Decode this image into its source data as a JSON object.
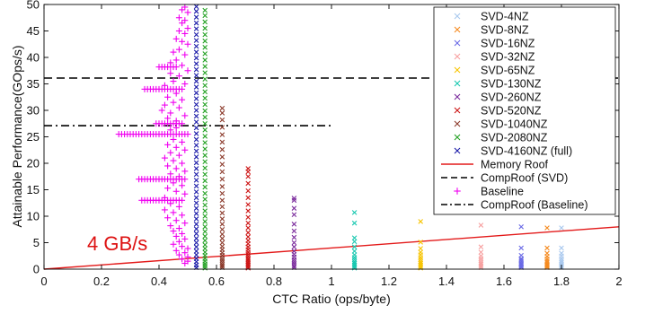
{
  "chart_data": {
    "type": "scatter",
    "title": "",
    "xlabel": "CTC Ratio (ops/byte)",
    "ylabel": "Attainable Performance(GOps/s)",
    "xlim": [
      0,
      2
    ],
    "ylim": [
      0,
      50
    ],
    "xticks": [
      "0",
      "0.2",
      "0.4",
      "0.6",
      "0.8",
      "1",
      "1.2",
      "1.4",
      "1.6",
      "1.8",
      "2"
    ],
    "yticks": [
      "0",
      "5",
      "10",
      "15",
      "20",
      "25",
      "30",
      "35",
      "40",
      "45",
      "50"
    ],
    "grid": false,
    "legend_position": "top-right",
    "annotation": {
      "text": "4 GB/s",
      "x": 0.15,
      "y": 3.6,
      "color": "#dd1111"
    },
    "series": [
      {
        "name": "SVD-4NZ",
        "marker": "x",
        "color": "#a8c8ee",
        "x": 1.8,
        "y_values": [
          0.3,
          0.5,
          0.8,
          1.0,
          1.3,
          1.6,
          2.0,
          2.5,
          3.0,
          4.0,
          7.8
        ]
      },
      {
        "name": "SVD-8NZ",
        "marker": "x",
        "color": "#f58a1f",
        "x": 1.75,
        "y_values": [
          0.3,
          0.5,
          0.7,
          0.9,
          1.2,
          1.5,
          1.9,
          2.4,
          3.0,
          4.0,
          7.8
        ]
      },
      {
        "name": "SVD-16NZ",
        "marker": "x",
        "color": "#6a6ae6",
        "x": 1.66,
        "y_values": [
          0.3,
          0.5,
          0.7,
          0.9,
          1.1,
          1.4,
          1.7,
          2.0,
          2.6,
          4.0,
          8.0
        ]
      },
      {
        "name": "SVD-32NZ",
        "marker": "x",
        "color": "#f7a0a0",
        "x": 1.52,
        "y_values": [
          0.3,
          0.6,
          0.9,
          1.2,
          1.6,
          2.0,
          2.5,
          3.2,
          4.2,
          8.3
        ]
      },
      {
        "name": "SVD-65NZ",
        "marker": "x",
        "color": "#f7c400",
        "x": 1.31,
        "y_values": [
          0.2,
          0.5,
          0.8,
          1.1,
          1.4,
          1.8,
          2.2,
          2.7,
          3.2,
          3.9,
          5.1,
          9.0
        ]
      },
      {
        "name": "SVD-130NZ",
        "marker": "x",
        "color": "#18c8b0",
        "x": 1.08,
        "y_values": [
          0.2,
          0.5,
          0.8,
          1.1,
          1.4,
          1.8,
          2.2,
          2.7,
          3.4,
          4.2,
          5.2,
          5.9,
          8.7,
          10.7
        ]
      },
      {
        "name": "SVD-260NZ",
        "marker": "x",
        "color": "#7a2a9c",
        "x": 0.87,
        "y_values": [
          0.3,
          0.6,
          1.0,
          1.4,
          1.8,
          2.3,
          2.8,
          3.4,
          4.2,
          5.0,
          6.0,
          7.2,
          8.5,
          10.3,
          11.5,
          13.0,
          13.4
        ]
      },
      {
        "name": "SVD-520NZ",
        "marker": "x",
        "color": "#cc1414",
        "x": 0.71,
        "y_values": [
          0.2,
          0.5,
          0.8,
          1.1,
          1.4,
          1.7,
          2.0,
          2.4,
          2.8,
          3.2,
          3.7,
          4.2,
          4.8,
          5.4,
          6.1,
          6.9,
          7.8,
          8.7,
          9.8,
          11.0,
          12.2,
          13.5,
          14.8,
          16.2,
          17.5,
          18.4,
          19.0
        ]
      },
      {
        "name": "SVD-1040NZ",
        "marker": "x",
        "color": "#8c3b2c",
        "x": 0.62,
        "y_values": [
          0.3,
          0.6,
          0.9,
          1.3,
          1.7,
          2.1,
          2.6,
          3.1,
          3.7,
          4.3,
          5.0,
          5.8,
          6.6,
          7.5,
          8.5,
          9.5,
          10.6,
          11.8,
          13.0,
          14.3,
          15.6,
          17.0,
          18.4,
          19.8,
          21.2,
          22.6,
          24.0,
          25.4,
          26.8,
          28.2,
          29.5,
          30.4
        ]
      },
      {
        "name": "SVD-2080NZ",
        "marker": "x",
        "color": "#23a123",
        "x": 0.56,
        "y_values": [
          0.2,
          0.6,
          1.0,
          1.5,
          2.0,
          2.6,
          3.2,
          3.9,
          4.6,
          5.4,
          6.2,
          7.1,
          8.0,
          9.0,
          10.0,
          11.0,
          12.1,
          13.2,
          14.3,
          15.5,
          16.7,
          17.9,
          19.1,
          20.3,
          21.5,
          22.7,
          23.9,
          25.1,
          26.3,
          27.5,
          28.7,
          29.9,
          31.1,
          32.3,
          33.5,
          34.7,
          35.9,
          37.1,
          38.3,
          39.5,
          40.7,
          41.9,
          43.1,
          44.3,
          45.5,
          46.7,
          47.9,
          48.9
        ]
      },
      {
        "name": "SVD-4160NZ (full)",
        "marker": "x",
        "color": "#1a1aa8",
        "x": 0.53,
        "y_values": [
          0.3,
          0.8,
          1.4,
          2.0,
          2.7,
          3.4,
          4.2,
          5.0,
          5.8,
          6.7,
          7.6,
          8.5,
          9.5,
          10.5,
          11.5,
          12.5,
          13.5,
          14.6,
          15.7,
          16.8,
          17.9,
          19.0,
          20.1,
          21.2,
          22.3,
          23.4,
          24.5,
          25.6,
          26.7,
          27.8,
          28.9,
          30.0,
          31.1,
          32.2,
          33.3,
          34.4,
          35.5,
          36.6,
          37.7,
          38.8,
          39.9,
          41.0,
          42.1,
          43.2,
          44.3,
          45.4,
          46.5,
          47.6,
          48.7,
          49.6
        ]
      },
      {
        "name": "Memory Roof",
        "type": "line",
        "color": "#e31a1a",
        "points": [
          [
            0,
            0
          ],
          [
            2,
            8
          ]
        ]
      },
      {
        "name": "CompRoof (SVD)",
        "type": "line",
        "style": "dashed",
        "color": "#000000",
        "points": [
          [
            0,
            36.1
          ],
          [
            2,
            36.1
          ]
        ]
      },
      {
        "name": "Baseline",
        "marker": "+",
        "color": "#f000f0",
        "points": [
          [
            0.49,
            49.5
          ],
          [
            0.48,
            49.0
          ],
          [
            0.5,
            48.5
          ],
          [
            0.47,
            47.5
          ],
          [
            0.49,
            47.0
          ],
          [
            0.48,
            46.5
          ],
          [
            0.5,
            45.5
          ],
          [
            0.47,
            45.0
          ],
          [
            0.49,
            44.5
          ],
          [
            0.46,
            43.5
          ],
          [
            0.48,
            43.0
          ],
          [
            0.5,
            42.5
          ],
          [
            0.47,
            41.5
          ],
          [
            0.45,
            41.0
          ],
          [
            0.49,
            40.5
          ],
          [
            0.46,
            39.5
          ],
          [
            0.44,
            39.0
          ],
          [
            0.48,
            38.5
          ],
          [
            0.4,
            38.2
          ],
          [
            0.41,
            38.2
          ],
          [
            0.42,
            38.2
          ],
          [
            0.43,
            38.2
          ],
          [
            0.44,
            38.2
          ],
          [
            0.45,
            38.2
          ],
          [
            0.46,
            38.2
          ],
          [
            0.5,
            37.5
          ],
          [
            0.44,
            37.0
          ],
          [
            0.47,
            36.5
          ],
          [
            0.45,
            35.5
          ],
          [
            0.49,
            35.0
          ],
          [
            0.42,
            34.7
          ],
          [
            0.35,
            34.0
          ],
          [
            0.36,
            34.0
          ],
          [
            0.37,
            34.0
          ],
          [
            0.38,
            34.0
          ],
          [
            0.39,
            34.0
          ],
          [
            0.4,
            34.0
          ],
          [
            0.41,
            34.0
          ],
          [
            0.42,
            34.0
          ],
          [
            0.43,
            34.0
          ],
          [
            0.44,
            34.0
          ],
          [
            0.45,
            34.0
          ],
          [
            0.46,
            34.0
          ],
          [
            0.47,
            34.0
          ],
          [
            0.48,
            34.0
          ],
          [
            0.46,
            33.2
          ],
          [
            0.43,
            32.5
          ],
          [
            0.48,
            32.0
          ],
          [
            0.45,
            31.5
          ],
          [
            0.42,
            31.0
          ],
          [
            0.47,
            30.5
          ],
          [
            0.41,
            30.0
          ],
          [
            0.44,
            29.5
          ],
          [
            0.49,
            29.0
          ],
          [
            0.43,
            28.5
          ],
          [
            0.46,
            28.0
          ],
          [
            0.39,
            27.5
          ],
          [
            0.4,
            27.5
          ],
          [
            0.41,
            27.5
          ],
          [
            0.42,
            27.5
          ],
          [
            0.43,
            27.5
          ],
          [
            0.44,
            27.5
          ],
          [
            0.45,
            27.5
          ],
          [
            0.46,
            27.5
          ],
          [
            0.47,
            27.5
          ],
          [
            0.48,
            27.5
          ],
          [
            0.46,
            26.7
          ],
          [
            0.44,
            26.3
          ],
          [
            0.26,
            25.5
          ],
          [
            0.27,
            25.5
          ],
          [
            0.28,
            25.5
          ],
          [
            0.29,
            25.5
          ],
          [
            0.3,
            25.5
          ],
          [
            0.31,
            25.5
          ],
          [
            0.32,
            25.5
          ],
          [
            0.33,
            25.5
          ],
          [
            0.34,
            25.5
          ],
          [
            0.35,
            25.5
          ],
          [
            0.36,
            25.5
          ],
          [
            0.37,
            25.5
          ],
          [
            0.38,
            25.5
          ],
          [
            0.39,
            25.5
          ],
          [
            0.4,
            25.5
          ],
          [
            0.41,
            25.5
          ],
          [
            0.42,
            25.5
          ],
          [
            0.43,
            25.5
          ],
          [
            0.44,
            25.5
          ],
          [
            0.45,
            25.5
          ],
          [
            0.46,
            25.5
          ],
          [
            0.47,
            25.5
          ],
          [
            0.48,
            25.5
          ],
          [
            0.49,
            25.5
          ],
          [
            0.5,
            25.5
          ],
          [
            0.45,
            24.5
          ],
          [
            0.48,
            24.0
          ],
          [
            0.43,
            23.5
          ],
          [
            0.46,
            23.0
          ],
          [
            0.49,
            22.5
          ],
          [
            0.44,
            22.0
          ],
          [
            0.47,
            21.5
          ],
          [
            0.42,
            21.0
          ],
          [
            0.45,
            20.5
          ],
          [
            0.48,
            20.0
          ],
          [
            0.43,
            19.5
          ],
          [
            0.46,
            19.0
          ],
          [
            0.49,
            18.5
          ],
          [
            0.44,
            18.0
          ],
          [
            0.47,
            17.5
          ],
          [
            0.33,
            17.0
          ],
          [
            0.34,
            17.0
          ],
          [
            0.35,
            17.0
          ],
          [
            0.36,
            17.0
          ],
          [
            0.37,
            17.0
          ],
          [
            0.38,
            17.0
          ],
          [
            0.39,
            17.0
          ],
          [
            0.4,
            17.0
          ],
          [
            0.41,
            17.0
          ],
          [
            0.42,
            17.0
          ],
          [
            0.43,
            17.0
          ],
          [
            0.44,
            17.0
          ],
          [
            0.45,
            17.0
          ],
          [
            0.46,
            17.0
          ],
          [
            0.47,
            17.0
          ],
          [
            0.48,
            17.0
          ],
          [
            0.49,
            17.0
          ],
          [
            0.45,
            16.3
          ],
          [
            0.48,
            15.8
          ],
          [
            0.43,
            15.3
          ],
          [
            0.46,
            14.7
          ],
          [
            0.49,
            14.2
          ],
          [
            0.42,
            13.5
          ],
          [
            0.34,
            13.0
          ],
          [
            0.35,
            13.0
          ],
          [
            0.36,
            13.0
          ],
          [
            0.37,
            13.0
          ],
          [
            0.38,
            13.0
          ],
          [
            0.39,
            13.0
          ],
          [
            0.4,
            13.0
          ],
          [
            0.41,
            13.0
          ],
          [
            0.42,
            13.0
          ],
          [
            0.43,
            13.0
          ],
          [
            0.44,
            13.0
          ],
          [
            0.45,
            13.0
          ],
          [
            0.46,
            13.0
          ],
          [
            0.47,
            13.0
          ],
          [
            0.48,
            13.0
          ],
          [
            0.44,
            12.4
          ],
          [
            0.47,
            11.8
          ],
          [
            0.42,
            11.2
          ],
          [
            0.45,
            10.7
          ],
          [
            0.48,
            10.2
          ],
          [
            0.43,
            9.7
          ],
          [
            0.46,
            9.2
          ],
          [
            0.49,
            8.7
          ],
          [
            0.44,
            8.2
          ],
          [
            0.47,
            7.7
          ],
          [
            0.45,
            7.2
          ],
          [
            0.48,
            6.7
          ],
          [
            0.46,
            6.2
          ],
          [
            0.49,
            5.7
          ],
          [
            0.47,
            5.2
          ],
          [
            0.45,
            4.7
          ],
          [
            0.48,
            4.3
          ],
          [
            0.5,
            3.9
          ],
          [
            0.46,
            3.5
          ],
          [
            0.49,
            3.1
          ],
          [
            0.47,
            2.7
          ],
          [
            0.5,
            2.3
          ],
          [
            0.48,
            1.9
          ],
          [
            0.5,
            1.5
          ],
          [
            0.49,
            1.1
          ]
        ]
      },
      {
        "name": "CompRoof (Baseline)",
        "type": "line",
        "style": "dashdot",
        "color": "#000000",
        "points": [
          [
            0,
            27.1
          ],
          [
            1.0,
            27.1
          ]
        ]
      }
    ]
  }
}
